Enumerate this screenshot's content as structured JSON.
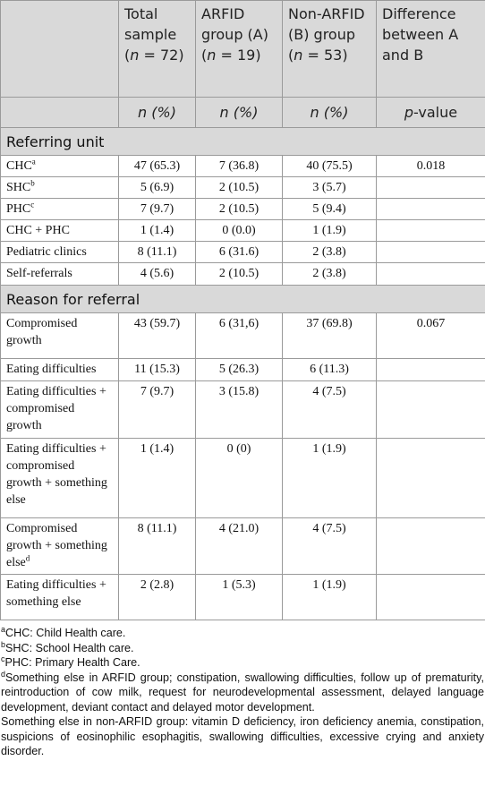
{
  "table": {
    "header": [
      [
        "Total sample (",
        {
          "italic": "n"
        },
        " = 72)"
      ],
      [
        "ARFID group (A) (",
        {
          "italic": "n"
        },
        " = 19)"
      ],
      [
        "Non-ARFID (B) group (",
        {
          "italic": "n"
        },
        " = 53)"
      ],
      [
        "Difference between A and B"
      ]
    ],
    "subheader": [
      [
        {
          "italic": "n (%)"
        }
      ],
      [
        {
          "italic": "n (%)"
        }
      ],
      [
        {
          "italic": "n (%)"
        }
      ],
      [
        {
          "italic": "p"
        },
        "-value"
      ]
    ],
    "sections": [
      {
        "title": "Referring unit",
        "rows": [
          {
            "label": [
              "CHC",
              {
                "sup": "a"
              }
            ],
            "values": [
              "47 (65.3)",
              "7 (36.8)",
              "40 (75.5)",
              "0.018"
            ]
          },
          {
            "label": [
              "SHC",
              {
                "sup": "b"
              }
            ],
            "values": [
              "5 (6.9)",
              "2 (10.5)",
              "3 (5.7)"
            ]
          },
          {
            "label": [
              "PHC",
              {
                "sup": "c"
              }
            ],
            "values": [
              "7 (9.7)",
              "2 (10.5)",
              "5 (9.4)"
            ]
          },
          {
            "label": [
              "CHC + PHC"
            ],
            "values": [
              "1 (1.4)",
              "0 (0.0)",
              "1 (1.9)"
            ]
          },
          {
            "label": [
              "Pediatric clinics"
            ],
            "values": [
              "8 (11.1)",
              "6 (31.6)",
              "2 (3.8)"
            ]
          },
          {
            "label": [
              "Self-referrals"
            ],
            "values": [
              "4 (5.6)",
              "2 (10.5)",
              "2 (3.8)"
            ]
          }
        ]
      },
      {
        "title": "Reason for referral",
        "rows": [
          {
            "label": [
              "Compromised growth"
            ],
            "values": [
              "43 (59.7)",
              "6 (31,6)",
              "37 (69.8)",
              "0.067"
            ]
          },
          {
            "label": [
              "Eating difficulties"
            ],
            "values": [
              "11 (15.3)",
              "5 (26.3)",
              "6 (11.3)"
            ]
          },
          {
            "label": [
              "Eating difficulties + compromised growth"
            ],
            "values": [
              "7 (9.7)",
              "3 (15.8)",
              "4 (7.5)"
            ]
          },
          {
            "label": [
              "Eating difficulties + compromised growth + something else"
            ],
            "values": [
              "1 (1.4)",
              "0 (0)",
              "1 (1.9)"
            ]
          },
          {
            "label": [
              "Compromised growth + something else",
              {
                "sup": "d"
              }
            ],
            "values": [
              "8 (11.1)",
              "4 (21.0)",
              "4 (7.5)"
            ]
          },
          {
            "label": [
              "Eating difficulties + something else"
            ],
            "values": [
              "2 (2.8)",
              "1 (5.3)",
              "1 (1.9)"
            ]
          }
        ]
      }
    ],
    "notes": [
      {
        "mark": "a",
        "text": "CHC: Child Health care."
      },
      {
        "mark": "b",
        "text": "SHC: School Health care."
      },
      {
        "mark": "c",
        "text": "PHC: Primary Health Care."
      },
      {
        "mark": "d",
        "text": "Something else in ARFID group; constipation, swallowing difficulties, follow up of prematurity, reintroduction of cow milk, request for neurodevelopmental assessment, delayed language development, deviant contact and delayed motor development."
      },
      {
        "text": "Something else in non-ARFID group: vitamin D deficiency, iron deficiency anemia, constipation, suspicions of eosinophilic esophagitis, swallowing difficulties, excessive crying and anxiety disorder."
      }
    ]
  }
}
